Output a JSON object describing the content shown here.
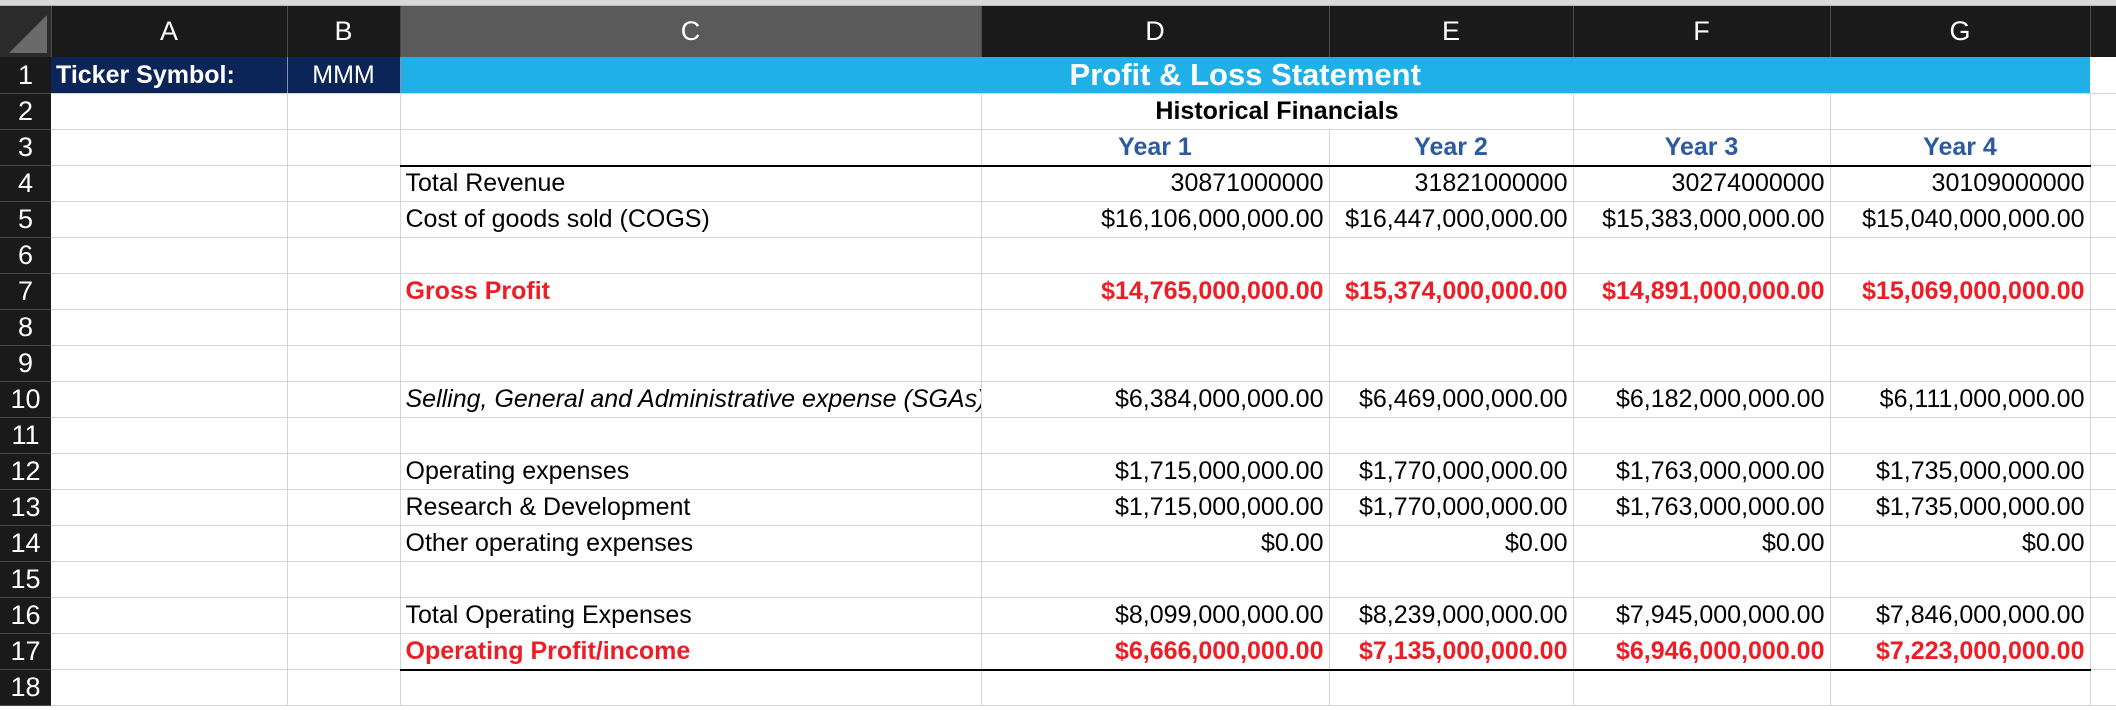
{
  "columns": [
    "A",
    "B",
    "C",
    "D",
    "E",
    "F",
    "G"
  ],
  "rows": [
    "1",
    "2",
    "3",
    "4",
    "5",
    "6",
    "7",
    "8",
    "9",
    "10",
    "11",
    "12",
    "13",
    "14",
    "15",
    "16",
    "17",
    "18"
  ],
  "ticker": {
    "label": "Ticker Symbol:",
    "value": "MMM"
  },
  "title": "Profit & Loss Statement",
  "subtitle": "Historical Financials",
  "years": [
    "Year 1",
    "Year 2",
    "Year 3",
    "Year 4"
  ],
  "lines": {
    "total_revenue": {
      "label": "Total Revenue",
      "values": [
        "30871000000",
        "31821000000",
        "30274000000",
        "30109000000"
      ]
    },
    "cogs": {
      "label": "Cost of goods sold (COGS)",
      "values": [
        "$16,106,000,000.00",
        "$16,447,000,000.00",
        "$15,383,000,000.00",
        "$15,040,000,000.00"
      ]
    },
    "gross_profit": {
      "label": "Gross Profit",
      "values": [
        "$14,765,000,000.00",
        "$15,374,000,000.00",
        "$14,891,000,000.00",
        "$15,069,000,000.00"
      ]
    },
    "sga": {
      "label": "Selling, General and Administrative expense (SGAs)",
      "values": [
        "$6,384,000,000.00",
        "$6,469,000,000.00",
        "$6,182,000,000.00",
        "$6,111,000,000.00"
      ]
    },
    "opex": {
      "label": "Operating expenses",
      "values": [
        "$1,715,000,000.00",
        "$1,770,000,000.00",
        "$1,763,000,000.00",
        "$1,735,000,000.00"
      ]
    },
    "rnd": {
      "label": "Research & Development",
      "values": [
        "$1,715,000,000.00",
        "$1,770,000,000.00",
        "$1,763,000,000.00",
        "$1,735,000,000.00"
      ]
    },
    "other_opex": {
      "label": "Other operating expenses",
      "values": [
        "$0.00",
        "$0.00",
        "$0.00",
        "$0.00"
      ]
    },
    "total_opex": {
      "label": "Total Operating Expenses",
      "values": [
        "$8,099,000,000.00",
        "$8,239,000,000.00",
        "$7,945,000,000.00",
        "$7,846,000,000.00"
      ]
    },
    "operating_profit": {
      "label": "Operating Profit/income",
      "values": [
        "$6,666,000,000.00",
        "$7,135,000,000.00",
        "$6,946,000,000.00",
        "$7,223,000,000.00"
      ]
    }
  },
  "colors": {
    "header_bg": "#1a1a1a",
    "navy": "#0b2558",
    "banner": "#20b0e8",
    "year_blue": "#2c5aa0",
    "red": "#ee1c24"
  }
}
